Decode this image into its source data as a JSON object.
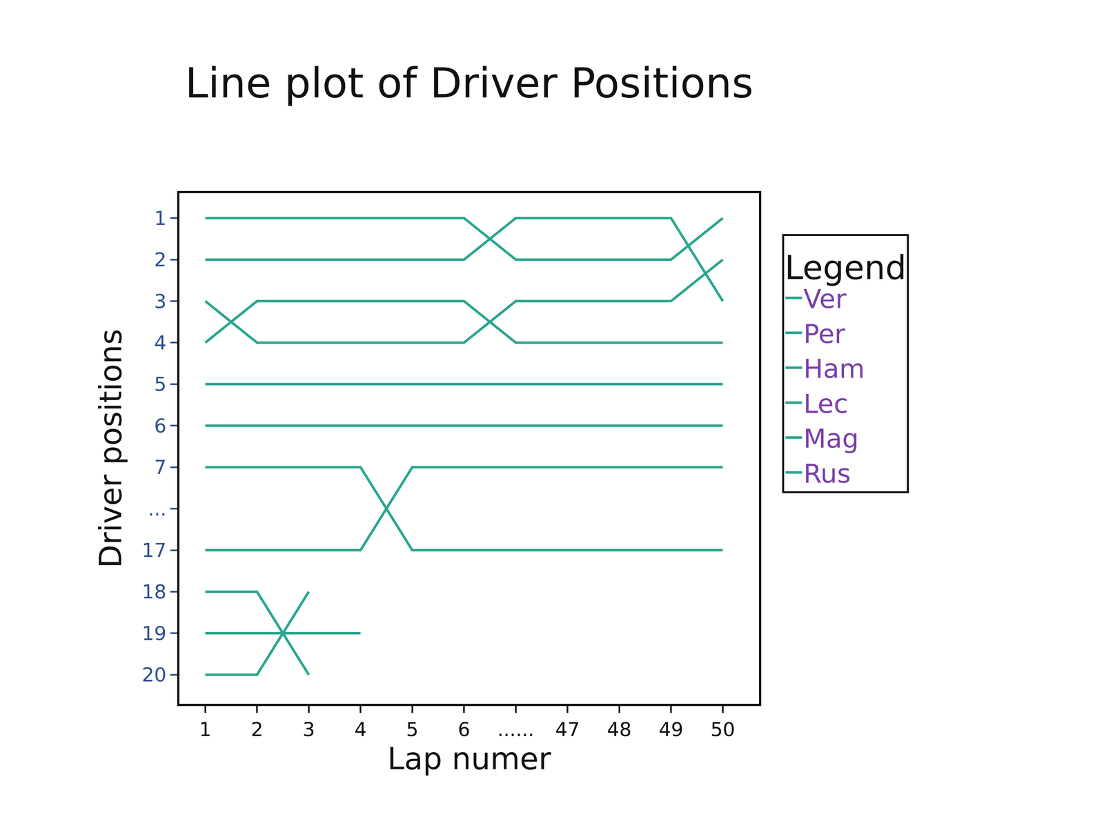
{
  "chart_data": {
    "type": "line",
    "title": "Line plot of Driver Positions",
    "x_label": "Lap numer",
    "y_label": "Driver positions",
    "categories": [
      "1",
      "2",
      "3",
      "4",
      "5",
      "6",
      "......",
      "47",
      "48",
      "49",
      "50"
    ],
    "y_categories": [
      "1",
      "2",
      "3",
      "4",
      "5",
      "6",
      "7",
      "...",
      "17",
      "18",
      "19",
      "20"
    ],
    "legend": "outside right",
    "legend_title": "Legend",
    "grid": false,
    "color": "#2aa58e",
    "line_style": "solid",
    "series": [
      {
        "name": "Ver",
        "values": [
          1,
          1,
          1,
          1,
          1,
          1,
          2,
          2,
          2,
          2,
          1
        ]
      },
      {
        "name": "Per",
        "values": [
          2,
          2,
          2,
          2,
          2,
          2,
          1,
          1,
          1,
          1,
          3
        ]
      },
      {
        "name": "Ham",
        "values": [
          3,
          4,
          4,
          4,
          4,
          4,
          3,
          3,
          3,
          3,
          2
        ]
      },
      {
        "name": "Lec",
        "values": [
          4,
          3,
          3,
          3,
          3,
          3,
          4,
          4,
          4,
          4,
          4
        ]
      },
      {
        "name": "Mag",
        "values": [
          5,
          5,
          5,
          5,
          5,
          5,
          5,
          5,
          5,
          5,
          5
        ]
      },
      {
        "name": "Rus",
        "values": [
          6,
          6,
          6,
          6,
          6,
          6,
          6,
          6,
          6,
          6,
          6
        ]
      },
      {
        "values": [
          7,
          7,
          7,
          7,
          17,
          17,
          17,
          17,
          17,
          17,
          17
        ]
      },
      {
        "values": [
          17,
          17,
          17,
          17,
          7,
          7,
          7,
          7,
          7,
          7,
          7
        ]
      },
      {
        "values": [
          18,
          18,
          20,
          null,
          null,
          null,
          null,
          null,
          null,
          null,
          null
        ]
      },
      {
        "values": [
          19,
          19,
          19,
          19,
          null,
          null,
          null,
          null,
          null,
          null,
          null
        ]
      },
      {
        "values": [
          20,
          20,
          18,
          null,
          null,
          null,
          null,
          null,
          null,
          null,
          null
        ]
      }
    ]
  }
}
